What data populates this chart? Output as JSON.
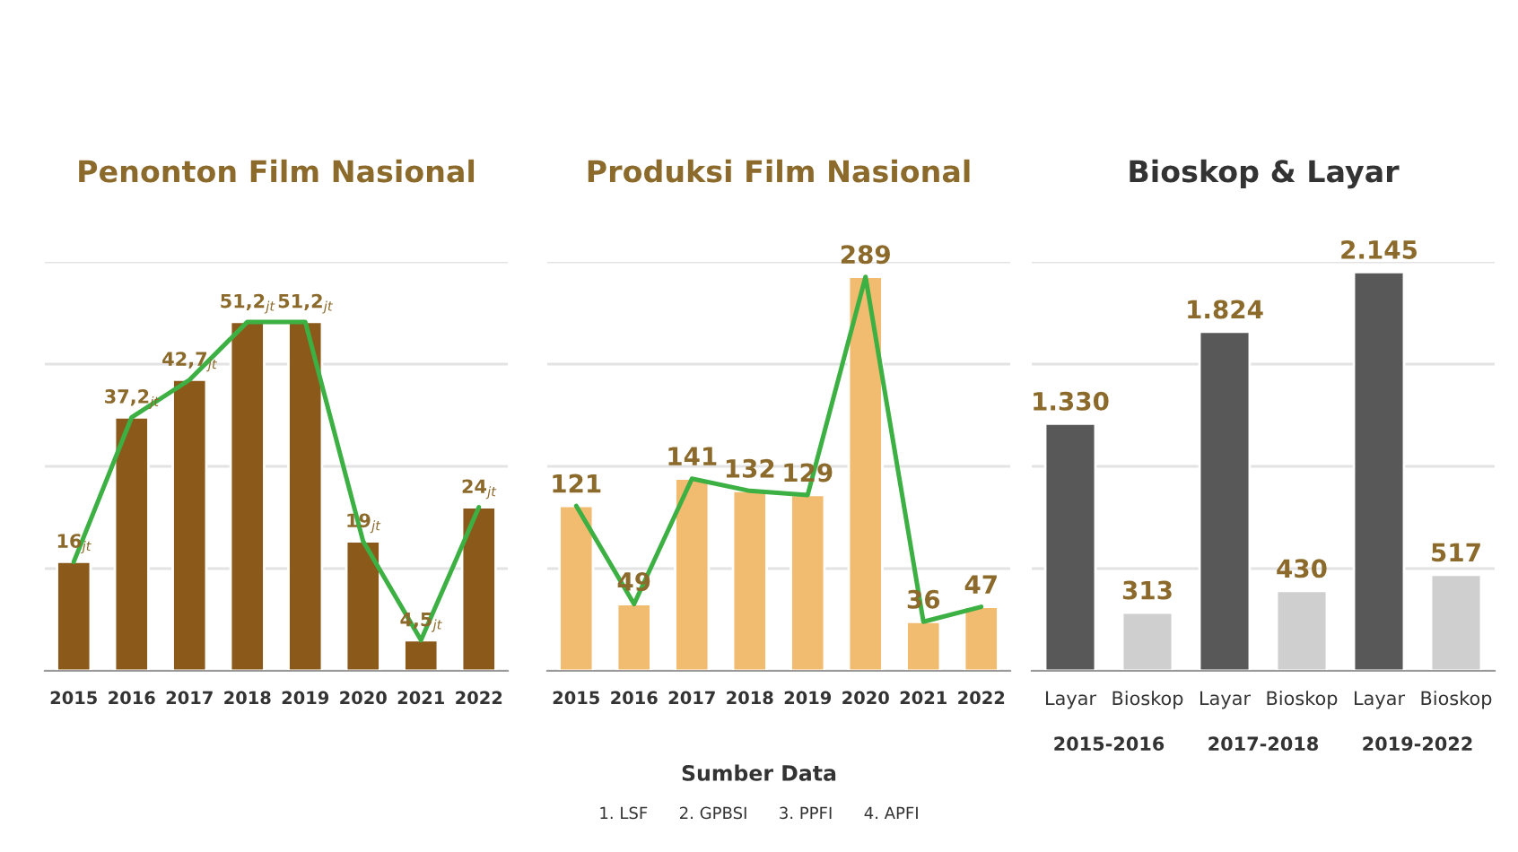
{
  "chart_data": [
    {
      "type": "bar",
      "title": "Penonton Film Nasional",
      "categories": [
        "2015",
        "2016",
        "2017",
        "2018",
        "2019",
        "2020",
        "2021",
        "2022"
      ],
      "series": [
        {
          "type": "bar",
          "color": "#8b5a1b",
          "values": [
            16,
            37.2,
            42.7,
            51.2,
            51.2,
            19,
            4.5,
            24
          ],
          "value_labels": [
            "16$_{jt}$",
            "37,2$_{jt}$",
            "42,7$_{jt}$",
            "51,2$_{jt}$",
            "51,2$_{jt}$",
            "19$_{jt}$",
            "4,5$_{jt}$",
            "24$_{jt}$"
          ]
        },
        {
          "type": "line",
          "color": "#3cb043",
          "values": [
            16,
            37.2,
            42.7,
            51.2,
            51.2,
            19,
            4.5,
            24
          ]
        }
      ],
      "ylim": [
        0,
        60
      ],
      "yticks": [
        {
          "value": 0,
          "label": null
        },
        {
          "value": 15,
          "label": null
        },
        {
          "value": 30,
          "label": null
        },
        {
          "value": 45,
          "label": null
        },
        {
          "value": 60,
          "label": null
        }
      ],
      "grid": "y",
      "tick_labels": "x"
    },
    {
      "type": "bar",
      "title": "Produksi Film Nasional",
      "categories": [
        "2015",
        "2016",
        "2017",
        "2018",
        "2019",
        "2020",
        "2021",
        "2022"
      ],
      "series": [
        {
          "type": "bar",
          "color": "#f2bc70",
          "values": [
            121,
            49,
            141,
            132,
            129,
            289,
            36,
            47
          ],
          "value_labels": [
            "121",
            "49",
            "141",
            "132",
            "129",
            "289",
            "36",
            "47"
          ]
        },
        {
          "type": "line",
          "color": "#3cb043",
          "values": [
            121,
            49,
            141,
            132,
            129,
            289,
            36,
            47
          ]
        }
      ],
      "ylim": [
        0,
        300
      ],
      "yticks": [
        {
          "value": 0,
          "label": null
        },
        {
          "value": 75,
          "label": null
        },
        {
          "value": 150,
          "label": null
        },
        {
          "value": 225,
          "label": null
        },
        {
          "value": 300,
          "label": null
        }
      ],
      "grid": "y",
      "tick_labels": "x",
      "annotations": [
        "Sumber Data",
        "1. LSF      2. GPBSI      3. PPFI      4. APFI"
      ]
    },
    {
      "type": "bar",
      "title": "Bioskop & Layar",
      "categories": [
        "Layar",
        "Bioskop",
        "Layar",
        "Bioskop",
        "Layar",
        "Bioskop"
      ],
      "values": [
        1330,
        313,
        1824,
        430,
        2145,
        517
      ],
      "colors": [
        "#585858",
        "#cfcfcf",
        "#585858",
        "#cfcfcf",
        "#585858",
        "#cfcfcf"
      ],
      "value_labels": [
        "1.330",
        "313",
        "1.824",
        "430",
        "2.145",
        "517"
      ],
      "ylim": [
        0,
        2200
      ],
      "yticks": [
        {
          "value": 0,
          "label": null
        },
        {
          "value": 550,
          "label": null
        },
        {
          "value": 1100,
          "label": null
        },
        {
          "value": 1650,
          "label": null
        },
        {
          "value": 2200,
          "label": null
        }
      ],
      "grid": "y",
      "tick_labels": "x",
      "annotations": [
        "2015-2016",
        "2017-2018",
        "2019-2022"
      ]
    }
  ]
}
